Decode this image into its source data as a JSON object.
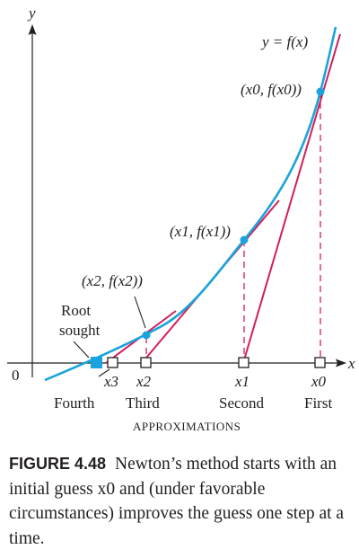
{
  "diagram": {
    "axis_x_label": "x",
    "axis_y_label": "y",
    "origin_label": "0",
    "curve_label": "y = f(x)",
    "point_labels": [
      "(x0, f(x0))",
      "(x1, f(x1))",
      "(x2, f(x2))"
    ],
    "root_label_line1": "Root",
    "root_label_line2": "sought",
    "x_tick_labels": [
      "x3",
      "x2",
      "x1",
      "x0"
    ],
    "approx_labels": [
      "Fourth",
      "Third",
      "Second",
      "First"
    ],
    "approximations_heading": "APPROXIMATIONS",
    "colors": {
      "curve": "#1aa3dc",
      "tangent": "#d21e5a",
      "point": "#1aa3dc",
      "root_marker": "#1aa3dc",
      "axis": "#231f20",
      "text": "#231f20"
    }
  },
  "caption": {
    "label": "FIGURE 4.48",
    "text": "Newton’s method starts with an initial guess x0 and (under favorable circumstances) improves the guess one step at a time."
  }
}
